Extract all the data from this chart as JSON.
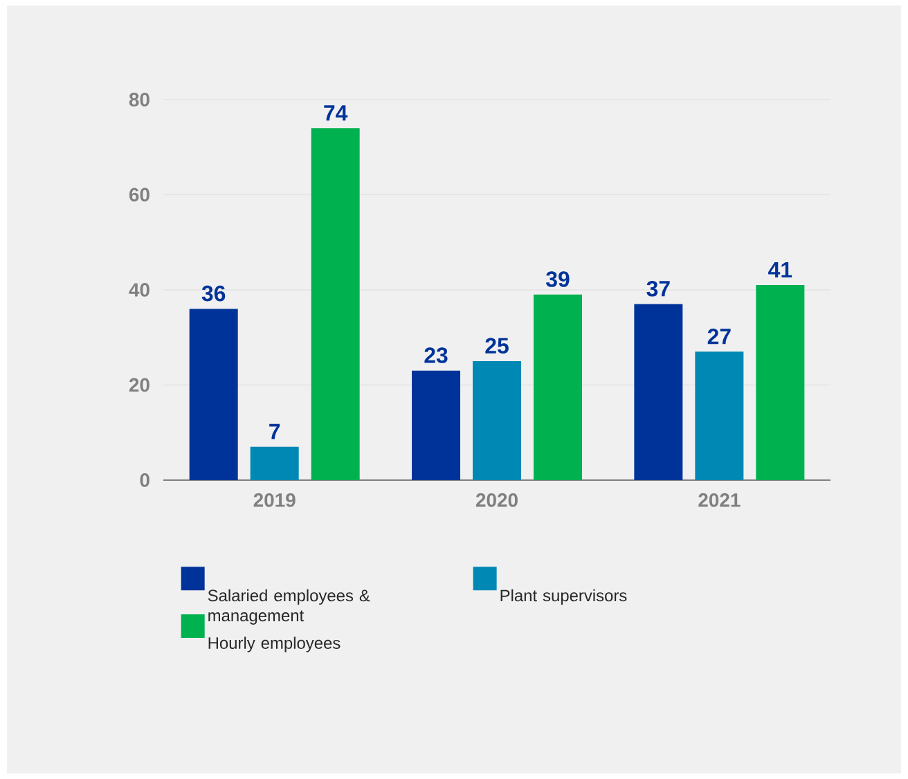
{
  "chart_data": {
    "type": "bar",
    "categories": [
      "2019",
      "2020",
      "2021"
    ],
    "series": [
      {
        "name": "Salaried employees & management",
        "color": "#003399",
        "values": [
          36,
          23,
          37
        ]
      },
      {
        "name": "Plant supervisors",
        "color": "#0088b4",
        "values": [
          7,
          25,
          27
        ]
      },
      {
        "name": "Hourly employees",
        "color": "#00b14f",
        "values": [
          74,
          39,
          41
        ]
      }
    ],
    "ylim": [
      0,
      80
    ],
    "yticks": [
      0,
      20,
      40,
      60,
      80
    ],
    "grid": "y",
    "legend": "bottom",
    "data_labels": true
  }
}
